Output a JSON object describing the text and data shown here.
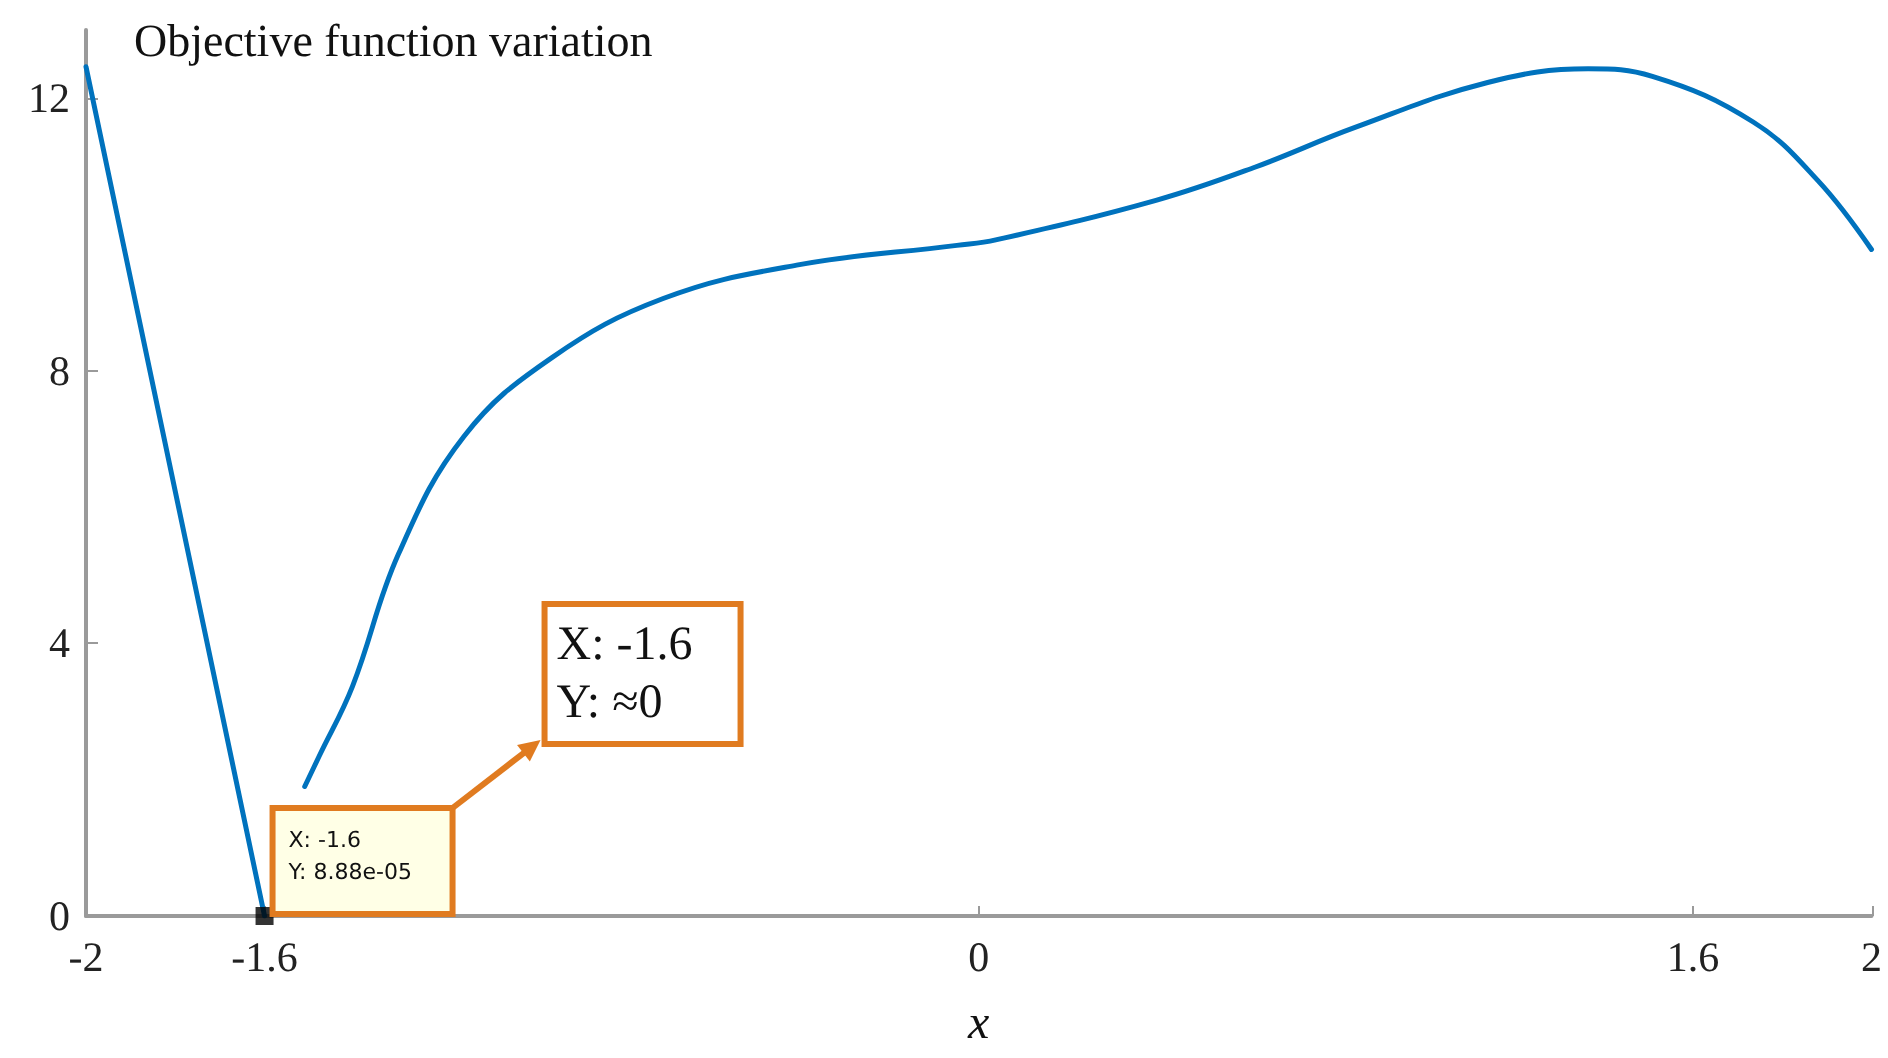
{
  "chart_data": {
    "type": "line",
    "title": "Objective function variation",
    "xlabel": "x",
    "xlim": [
      -2,
      2
    ],
    "ylim": [
      0,
      13
    ],
    "xticks": [
      -2,
      -1.6,
      0,
      1.6,
      2
    ],
    "yticks": [
      0,
      4,
      8,
      12
    ],
    "series": [
      {
        "color": "#0072bd",
        "marker": "none",
        "line_style": "solid",
        "x": [
          -2,
          -1.6,
          -1.57,
          -1.51,
          -1.478,
          -1.403,
          -1.3,
          -1.153,
          -0.957,
          -0.707,
          -0.408,
          -0.049,
          0.038,
          0.397,
          0.62,
          0.843,
          1.14,
          1.365,
          1.509,
          1.735,
          1.88,
          2
        ],
        "values": [
          12.46,
          0,
          null,
          1.9,
          2.34,
          3.37,
          5.31,
          7.04,
          8.19,
          9.06,
          9.55,
          9.84,
          9.92,
          10.5,
          10.99,
          11.57,
          12.23,
          12.43,
          12.32,
          11.65,
          10.79,
          9.78
        ]
      },
      {
        "type": "scatter",
        "color": "#000000",
        "marker": "square",
        "x": [
          -1.6
        ],
        "values": [
          0
        ]
      }
    ],
    "annotations": [
      {
        "text": "X: -1.6\nY: 8.88e-05",
        "x": -1.6,
        "y": 0
      },
      "X: -1.6\nY: ≈0"
    ]
  }
}
